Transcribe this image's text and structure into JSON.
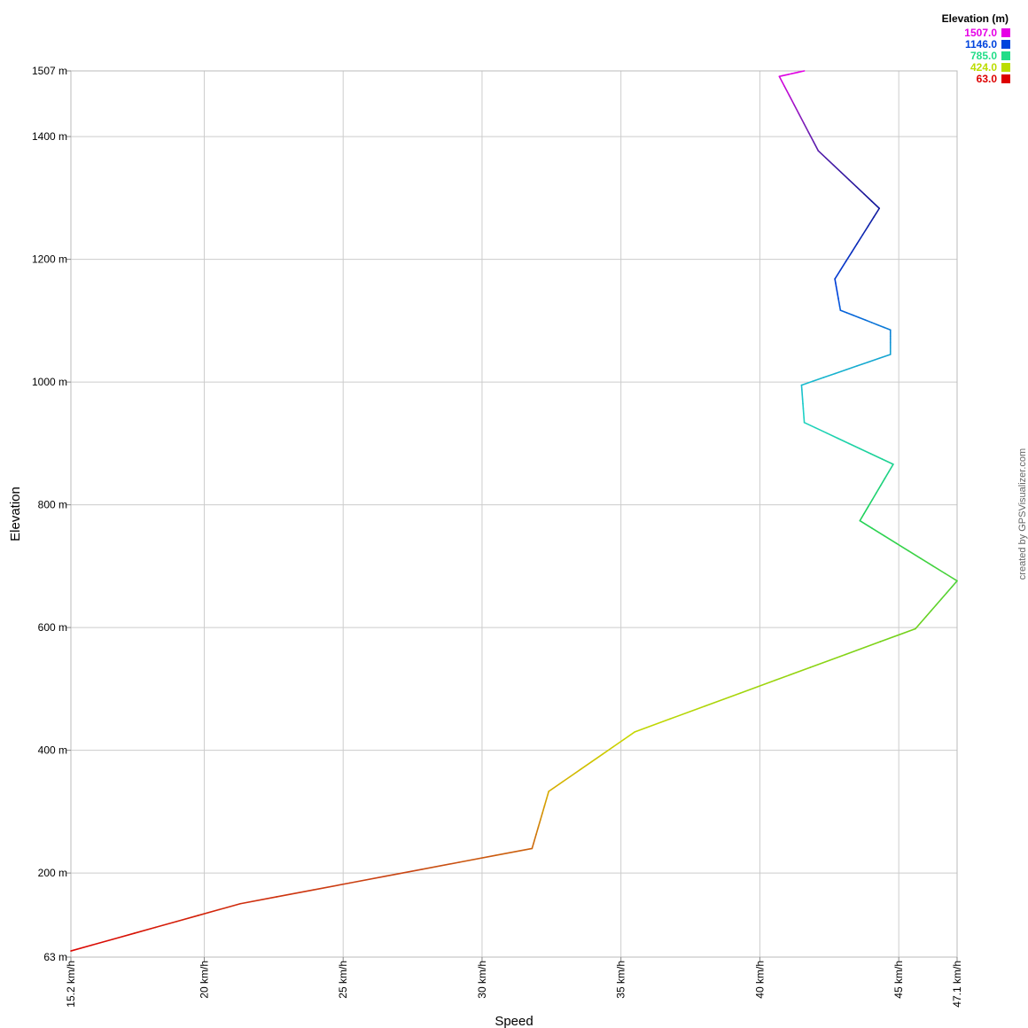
{
  "chart_data": {
    "type": "line",
    "xlabel": "Speed",
    "ylabel": "Elevation",
    "xlim": [
      15.2,
      47.1
    ],
    "ylim": [
      63,
      1507
    ],
    "grid": true,
    "x_ticks": [
      {
        "value": 15.2,
        "label": "15.2 km/h"
      },
      {
        "value": 20,
        "label": "20 km/h"
      },
      {
        "value": 25,
        "label": "25 km/h"
      },
      {
        "value": 30,
        "label": "30 km/h"
      },
      {
        "value": 35,
        "label": "35 km/h"
      },
      {
        "value": 40,
        "label": "40 km/h"
      },
      {
        "value": 45,
        "label": "45 km/h"
      },
      {
        "value": 47.1,
        "label": "47.1 km/h"
      }
    ],
    "y_ticks": [
      {
        "value": 63,
        "label": "63 m"
      },
      {
        "value": 200,
        "label": "200 m"
      },
      {
        "value": 400,
        "label": "400 m"
      },
      {
        "value": 600,
        "label": "600 m"
      },
      {
        "value": 800,
        "label": "800 m"
      },
      {
        "value": 1000,
        "label": "1000 m"
      },
      {
        "value": 1200,
        "label": "1200 m"
      },
      {
        "value": 1400,
        "label": "1400 m"
      },
      {
        "value": 1507,
        "label": "1507 m"
      }
    ],
    "series": [
      {
        "x": [
          15.2,
          21.3,
          31.8,
          32.4,
          35.5,
          45.6,
          47.1,
          43.6,
          44.8,
          41.6,
          41.5,
          44.7,
          44.7,
          42.9,
          42.7,
          44.3,
          42.1,
          40.7,
          41.6
        ],
        "y": [
          73,
          150,
          240,
          333,
          430,
          598,
          676,
          774,
          866,
          934,
          995,
          1045,
          1085,
          1117,
          1168,
          1283,
          1377,
          1498,
          1507
        ]
      }
    ],
    "legend": {
      "title": "Elevation (m)",
      "placement": "top-right",
      "entries": [
        {
          "label": "1507.0",
          "color": "#e600e6"
        },
        {
          "label": "1146.0",
          "color": "#0044dd"
        },
        {
          "label": "785.0",
          "color": "#22dd88"
        },
        {
          "label": "424.0",
          "color": "#bbdd00"
        },
        {
          "label": "63.0",
          "color": "#dd0000"
        }
      ]
    },
    "credit": "created by GPSVisualizer.com"
  }
}
